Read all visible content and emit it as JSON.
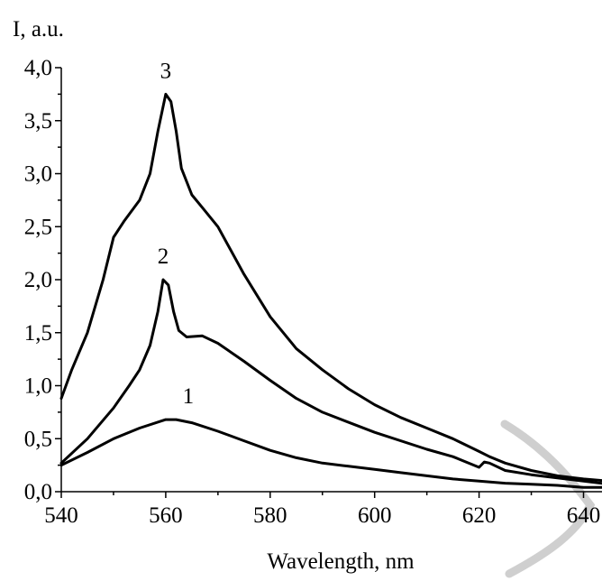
{
  "chart_data": {
    "type": "line",
    "xlabel": "Wavelength, nm",
    "ylabel": "I, a.u.",
    "xlim": [
      540,
      645
    ],
    "ylim": [
      0,
      4.0
    ],
    "x_ticks": [
      "540",
      "560",
      "580",
      "600",
      "620",
      "640"
    ],
    "y_ticks": [
      "0,0",
      "0,5",
      "1,0",
      "1,5",
      "2,0",
      "2,5",
      "3,0",
      "3,5",
      "4,0"
    ],
    "grid": false,
    "series": [
      {
        "name": "1",
        "x": [
          540,
          545,
          550,
          555,
          560,
          562,
          565,
          570,
          575,
          580,
          585,
          590,
          595,
          600,
          605,
          610,
          615,
          620,
          625,
          630,
          635,
          640,
          645
        ],
        "y": [
          0.25,
          0.37,
          0.5,
          0.6,
          0.68,
          0.68,
          0.65,
          0.57,
          0.48,
          0.39,
          0.32,
          0.27,
          0.24,
          0.21,
          0.18,
          0.15,
          0.12,
          0.1,
          0.08,
          0.07,
          0.06,
          0.04,
          0.04
        ]
      },
      {
        "name": "2",
        "x": [
          540,
          545,
          550,
          553,
          555,
          557,
          558.5,
          559.5,
          560.5,
          561.5,
          562.5,
          564,
          567,
          570,
          575,
          580,
          585,
          590,
          600,
          610,
          615,
          620,
          621,
          622,
          625,
          630,
          635,
          640,
          645
        ],
        "y": [
          0.27,
          0.5,
          0.79,
          1.0,
          1.15,
          1.38,
          1.7,
          2.0,
          1.95,
          1.7,
          1.52,
          1.46,
          1.47,
          1.4,
          1.23,
          1.05,
          0.88,
          0.75,
          0.56,
          0.4,
          0.33,
          0.23,
          0.28,
          0.27,
          0.2,
          0.16,
          0.13,
          0.1,
          0.07
        ]
      },
      {
        "name": "3",
        "x": [
          540,
          542,
          545,
          548,
          550,
          552,
          555,
          557,
          558.5,
          560,
          561,
          562,
          563,
          565,
          567,
          570,
          575,
          580,
          585,
          590,
          595,
          600,
          605,
          610,
          615,
          620,
          622,
          625,
          630,
          635,
          640,
          645
        ],
        "y": [
          0.88,
          1.15,
          1.5,
          2.0,
          2.4,
          2.55,
          2.75,
          3.0,
          3.4,
          3.75,
          3.68,
          3.4,
          3.05,
          2.8,
          2.68,
          2.5,
          2.05,
          1.65,
          1.35,
          1.15,
          0.97,
          0.82,
          0.7,
          0.6,
          0.5,
          0.38,
          0.33,
          0.27,
          0.2,
          0.15,
          0.12,
          0.1
        ]
      }
    ]
  }
}
